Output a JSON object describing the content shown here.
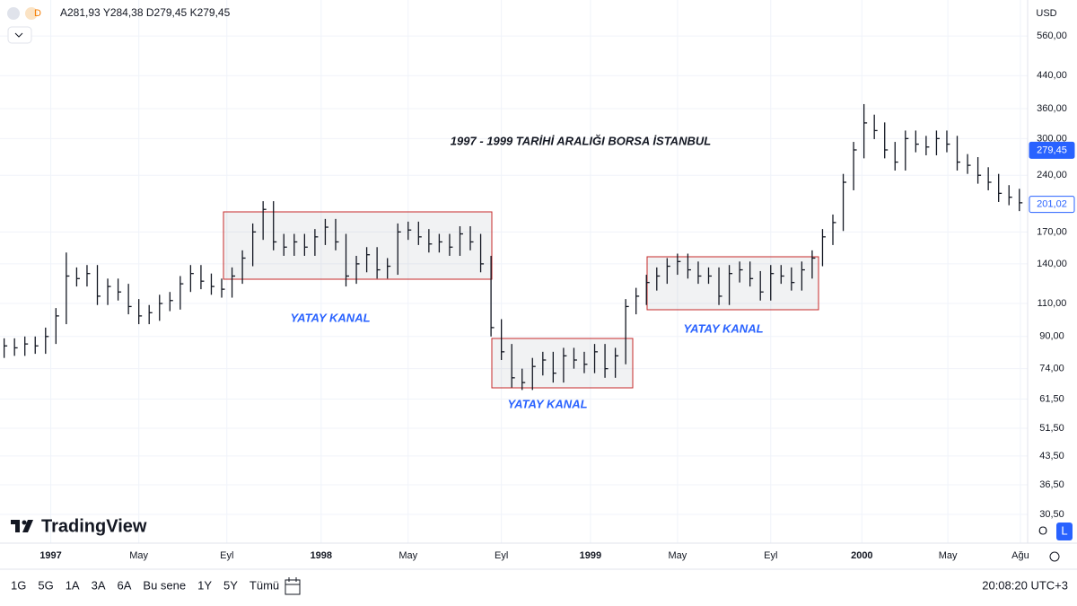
{
  "header": {
    "symbol_letter": "D",
    "ohlc": "A281,93 Y284,38 D279,45 K279,45",
    "currency": "USD",
    "logo": "TradingView"
  },
  "toolbar": {
    "ranges": [
      "1G",
      "5G",
      "1A",
      "3A",
      "6A",
      "Bu sene",
      "1Y",
      "5Y",
      "Tümü"
    ],
    "clock": "20:08:20 UTC+3",
    "scale_buttons": [
      "O",
      "L"
    ]
  },
  "chart_data": {
    "type": "ohlc",
    "title": "1997 - 1999 TARİHİ ARALIĞI BORSA İSTANBUL",
    "color": "#131722",
    "log_scale": true,
    "grid": true,
    "annotations": [
      "YATAY KANAL",
      "YATAY KANAL",
      "YATAY KANAL"
    ],
    "high": [
      89,
      89,
      90,
      90,
      95,
      107,
      150,
      137,
      139,
      139,
      128,
      128,
      124,
      113,
      109,
      116,
      118,
      130,
      139,
      139,
      132,
      128,
      137,
      152,
      179,
      205,
      205,
      168,
      168,
      168,
      173,
      184,
      184,
      168,
      147,
      155,
      155,
      145,
      179,
      181,
      181,
      173,
      168,
      168,
      176,
      176,
      168,
      147,
      100,
      86,
      74,
      79,
      82,
      82,
      84,
      84,
      82,
      86,
      86,
      84,
      113,
      121,
      131,
      137,
      145,
      149,
      149,
      142,
      137,
      137,
      139,
      142,
      142,
      134,
      139,
      139,
      137,
      142,
      152,
      173,
      189,
      242,
      294,
      370,
      347,
      331,
      294,
      315,
      315,
      305,
      315,
      315,
      305,
      273,
      268,
      252,
      242,
      226,
      221
    ],
    "low": [
      79,
      80,
      80,
      81,
      81,
      86,
      97,
      122,
      122,
      109,
      109,
      112,
      103,
      97,
      97,
      99,
      105,
      106,
      118,
      120,
      116,
      114,
      114,
      124,
      138,
      162,
      152,
      147,
      147,
      147,
      147,
      157,
      152,
      122,
      124,
      133,
      128,
      128,
      131,
      162,
      157,
      150,
      150,
      147,
      147,
      152,
      133,
      90,
      78,
      66,
      65,
      65,
      71,
      68,
      68,
      74,
      72,
      72,
      70,
      70,
      76,
      103,
      109,
      119,
      124,
      131,
      128,
      124,
      124,
      109,
      109,
      125,
      122,
      112,
      112,
      124,
      119,
      119,
      128,
      138,
      157,
      171,
      219,
      266,
      299,
      266,
      247,
      247,
      276,
      271,
      271,
      276,
      247,
      242,
      228,
      219,
      204,
      200,
      193
    ],
    "close": [
      85,
      84,
      86,
      85,
      90,
      102,
      130,
      128,
      132,
      115,
      122,
      118,
      108,
      102,
      104,
      110,
      112,
      124,
      132,
      126,
      122,
      120,
      130,
      145,
      170,
      195,
      160,
      155,
      160,
      155,
      165,
      175,
      160,
      130,
      140,
      148,
      135,
      138,
      170,
      172,
      165,
      158,
      160,
      155,
      168,
      160,
      140,
      95,
      82,
      70,
      68,
      75,
      78,
      72,
      80,
      78,
      76,
      82,
      74,
      80,
      108,
      115,
      125,
      130,
      138,
      142,
      135,
      130,
      130,
      115,
      132,
      135,
      128,
      118,
      132,
      130,
      125,
      135,
      145,
      165,
      180,
      230,
      280,
      330,
      315,
      280,
      260,
      300,
      290,
      285,
      300,
      290,
      260,
      255,
      240,
      230,
      215,
      210,
      203
    ],
    "xlim": [
      -0.4,
      98.8
    ],
    "xticks": [
      {
        "value": 4.5,
        "label": "1997"
      },
      {
        "value": 13.0,
        "label": "May"
      },
      {
        "value": 21.5,
        "label": "Eyl"
      },
      {
        "value": 30.6,
        "label": "1998"
      },
      {
        "value": 39.0,
        "label": "May"
      },
      {
        "value": 48.0,
        "label": "Eyl"
      },
      {
        "value": 56.6,
        "label": "1999"
      },
      {
        "value": 65.0,
        "label": "May"
      },
      {
        "value": 74.0,
        "label": "Eyl"
      },
      {
        "value": 82.8,
        "label": "2000"
      },
      {
        "value": 91.1,
        "label": "May"
      },
      {
        "value": 98.1,
        "label": "Ağu"
      }
    ],
    "ylim": [
      25.6,
      697
    ],
    "yticks": [
      {
        "value": 560,
        "label": "560,00"
      },
      {
        "value": 440,
        "label": "440,00"
      },
      {
        "value": 360,
        "label": "360,00"
      },
      {
        "value": 300,
        "label": "300,00"
      },
      {
        "value": 240,
        "label": "240,00"
      },
      {
        "value": 170,
        "label": "170,00"
      },
      {
        "value": 140,
        "label": "140,00"
      },
      {
        "value": 110,
        "label": "110,00"
      },
      {
        "value": 90,
        "label": "90,00"
      },
      {
        "value": 74,
        "label": "74,00"
      },
      {
        "value": 61.5,
        "label": "61,50"
      },
      {
        "value": 51.5,
        "label": "51,50"
      },
      {
        "value": 43.5,
        "label": "43,50"
      },
      {
        "value": 36.5,
        "label": "36,50"
      },
      {
        "value": 30.5,
        "label": "30,50"
      }
    ],
    "price_tags": [
      {
        "value": 279.45,
        "label": "279,45",
        "color": "#2962ff"
      },
      {
        "value": 201.02,
        "label": "201,02",
        "color": "#2962ff"
      }
    ]
  }
}
